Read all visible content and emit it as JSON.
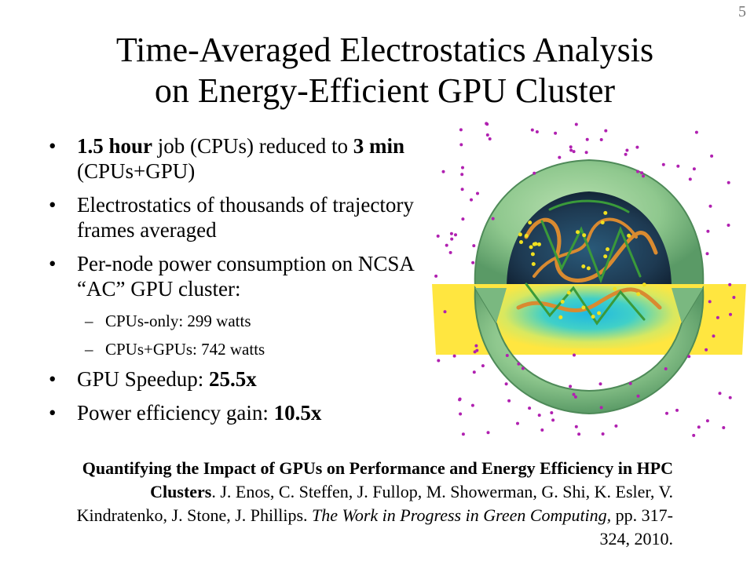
{
  "page_number": "5",
  "title": {
    "line1": "Time-Averaged Electrostatics Analysis",
    "line2": "on Energy-Efficient GPU Cluster"
  },
  "bullets": {
    "b1": {
      "bold1": "1.5 hour",
      "text1": " job (CPUs) reduced to ",
      "bold2": "3 min",
      "text2": " (CPUs+GPU)"
    },
    "b2": {
      "text": "Electrostatics of thousands of trajectory frames averaged"
    },
    "b3": {
      "text": "Per-node power consumption on NCSA “AC” GPU cluster:"
    },
    "b3_sub": [
      "CPUs-only: 299 watts",
      "CPUs+GPUs: 742 watts"
    ],
    "b4": {
      "text": "GPU Speedup: ",
      "bold": "25.5x"
    },
    "b5": {
      "text": "Power efficiency gain: ",
      "bold": "10.5x"
    }
  },
  "citation": {
    "title_bold": "Quantifying the Impact of GPUs on Performance and Energy Efficiency in HPC Clusters",
    "authors": ". J. Enos, C. Steffen, J. Fullop, M. Showerman, G. Shi, K. Esler, V. Kindratenko, J. Stone, J. Phillips.",
    "journal": "The Work in Progress in Green Computing,",
    "pages": "  pp. 317-324, 2010."
  },
  "colors": {
    "capsid": "#8fc88e",
    "capsid_dark": "#4e8a58",
    "interior": "#1e3a52",
    "plane_outer": "#ffe640",
    "plane_inner": "#30c8e0",
    "rna": "#d98a30",
    "protein": "#3a9a3a",
    "ions": "#b020b0",
    "yellow_atoms": "#f0e020"
  }
}
